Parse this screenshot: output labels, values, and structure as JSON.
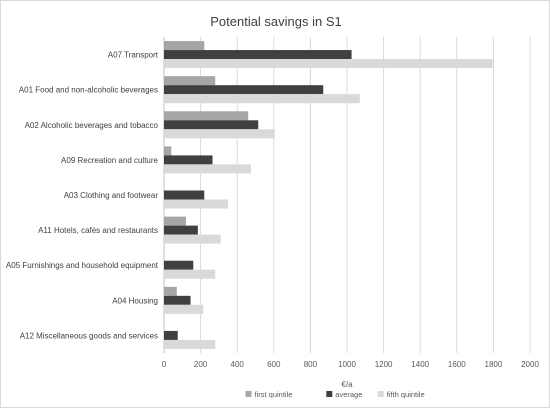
{
  "chart_data": {
    "type": "bar",
    "orientation": "horizontal",
    "title": "Potential savings in S1",
    "xlabel": "€/a",
    "ylabel": "",
    "xlim": [
      0,
      2000
    ],
    "xticks": [
      0,
      200,
      400,
      600,
      800,
      1000,
      1200,
      1400,
      1600,
      1800,
      2000
    ],
    "grid": true,
    "legend_position": "bottom",
    "categories": [
      "A07 Transport",
      "A01 Food and non-alcoholic beverages",
      "A02 Alcoholic beverages and tobacco",
      "A09 Recreation and culture",
      "A03 Clothing and footwear",
      "A11 Hotels, cafés and restaurants",
      "A05 Furnishings and household equipment",
      "A04 Housing",
      "A12 Miscellaneous goods and services"
    ],
    "series": [
      {
        "name": "first quintile",
        "color": "#a6a6a6",
        "values": [
          220,
          280,
          460,
          40,
          0,
          120,
          0,
          70,
          0
        ]
      },
      {
        "name": "average",
        "color": "#404040",
        "values": [
          1025,
          870,
          515,
          265,
          220,
          185,
          160,
          145,
          75
        ]
      },
      {
        "name": "fifth quintile",
        "color": "#d9d9d9",
        "values": [
          1795,
          1070,
          605,
          475,
          350,
          310,
          280,
          215,
          280
        ]
      }
    ]
  }
}
